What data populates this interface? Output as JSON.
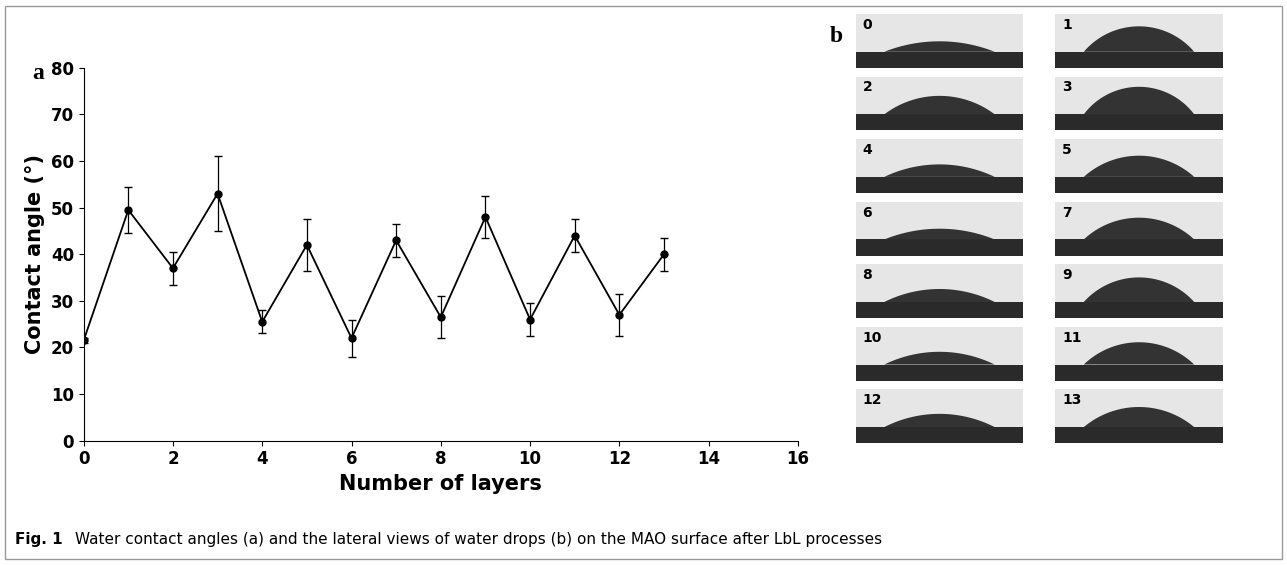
{
  "chart_data": {
    "type": "line",
    "panel_label": "a",
    "x_label": "Number of layers",
    "y_label": "Contact angle (°)",
    "x": [
      0,
      1,
      2,
      3,
      4,
      5,
      6,
      7,
      8,
      9,
      10,
      11,
      12,
      13
    ],
    "values": [
      21.5,
      49.5,
      37,
      53,
      25.5,
      42,
      22,
      43,
      26.5,
      48,
      26,
      44,
      27,
      40
    ],
    "errors": [
      0.5,
      5,
      3.5,
      8,
      2.5,
      5.5,
      4,
      3.5,
      4.5,
      4.5,
      3.5,
      3.5,
      4.5,
      3.5
    ],
    "color": "#000000",
    "marker": "circle",
    "line_style": "solid",
    "xlim": [
      0,
      16
    ],
    "xticks": [
      0,
      2,
      4,
      6,
      8,
      10,
      12,
      14,
      16
    ],
    "ylim": [
      0,
      80
    ],
    "yticks": [
      0,
      10,
      20,
      30,
      40,
      50,
      60,
      70,
      80
    ],
    "grid": false
  },
  "photos": {
    "panel_label": "b",
    "labels": [
      "0",
      "1",
      "2",
      "3",
      "4",
      "5",
      "6",
      "7",
      "8",
      "9",
      "10",
      "11",
      "12",
      "13"
    ]
  },
  "caption_label": "Fig. 1",
  "caption": "Water contact angles (a) and the lateral views of water drops (b) on the MAO surface after LbL processes"
}
